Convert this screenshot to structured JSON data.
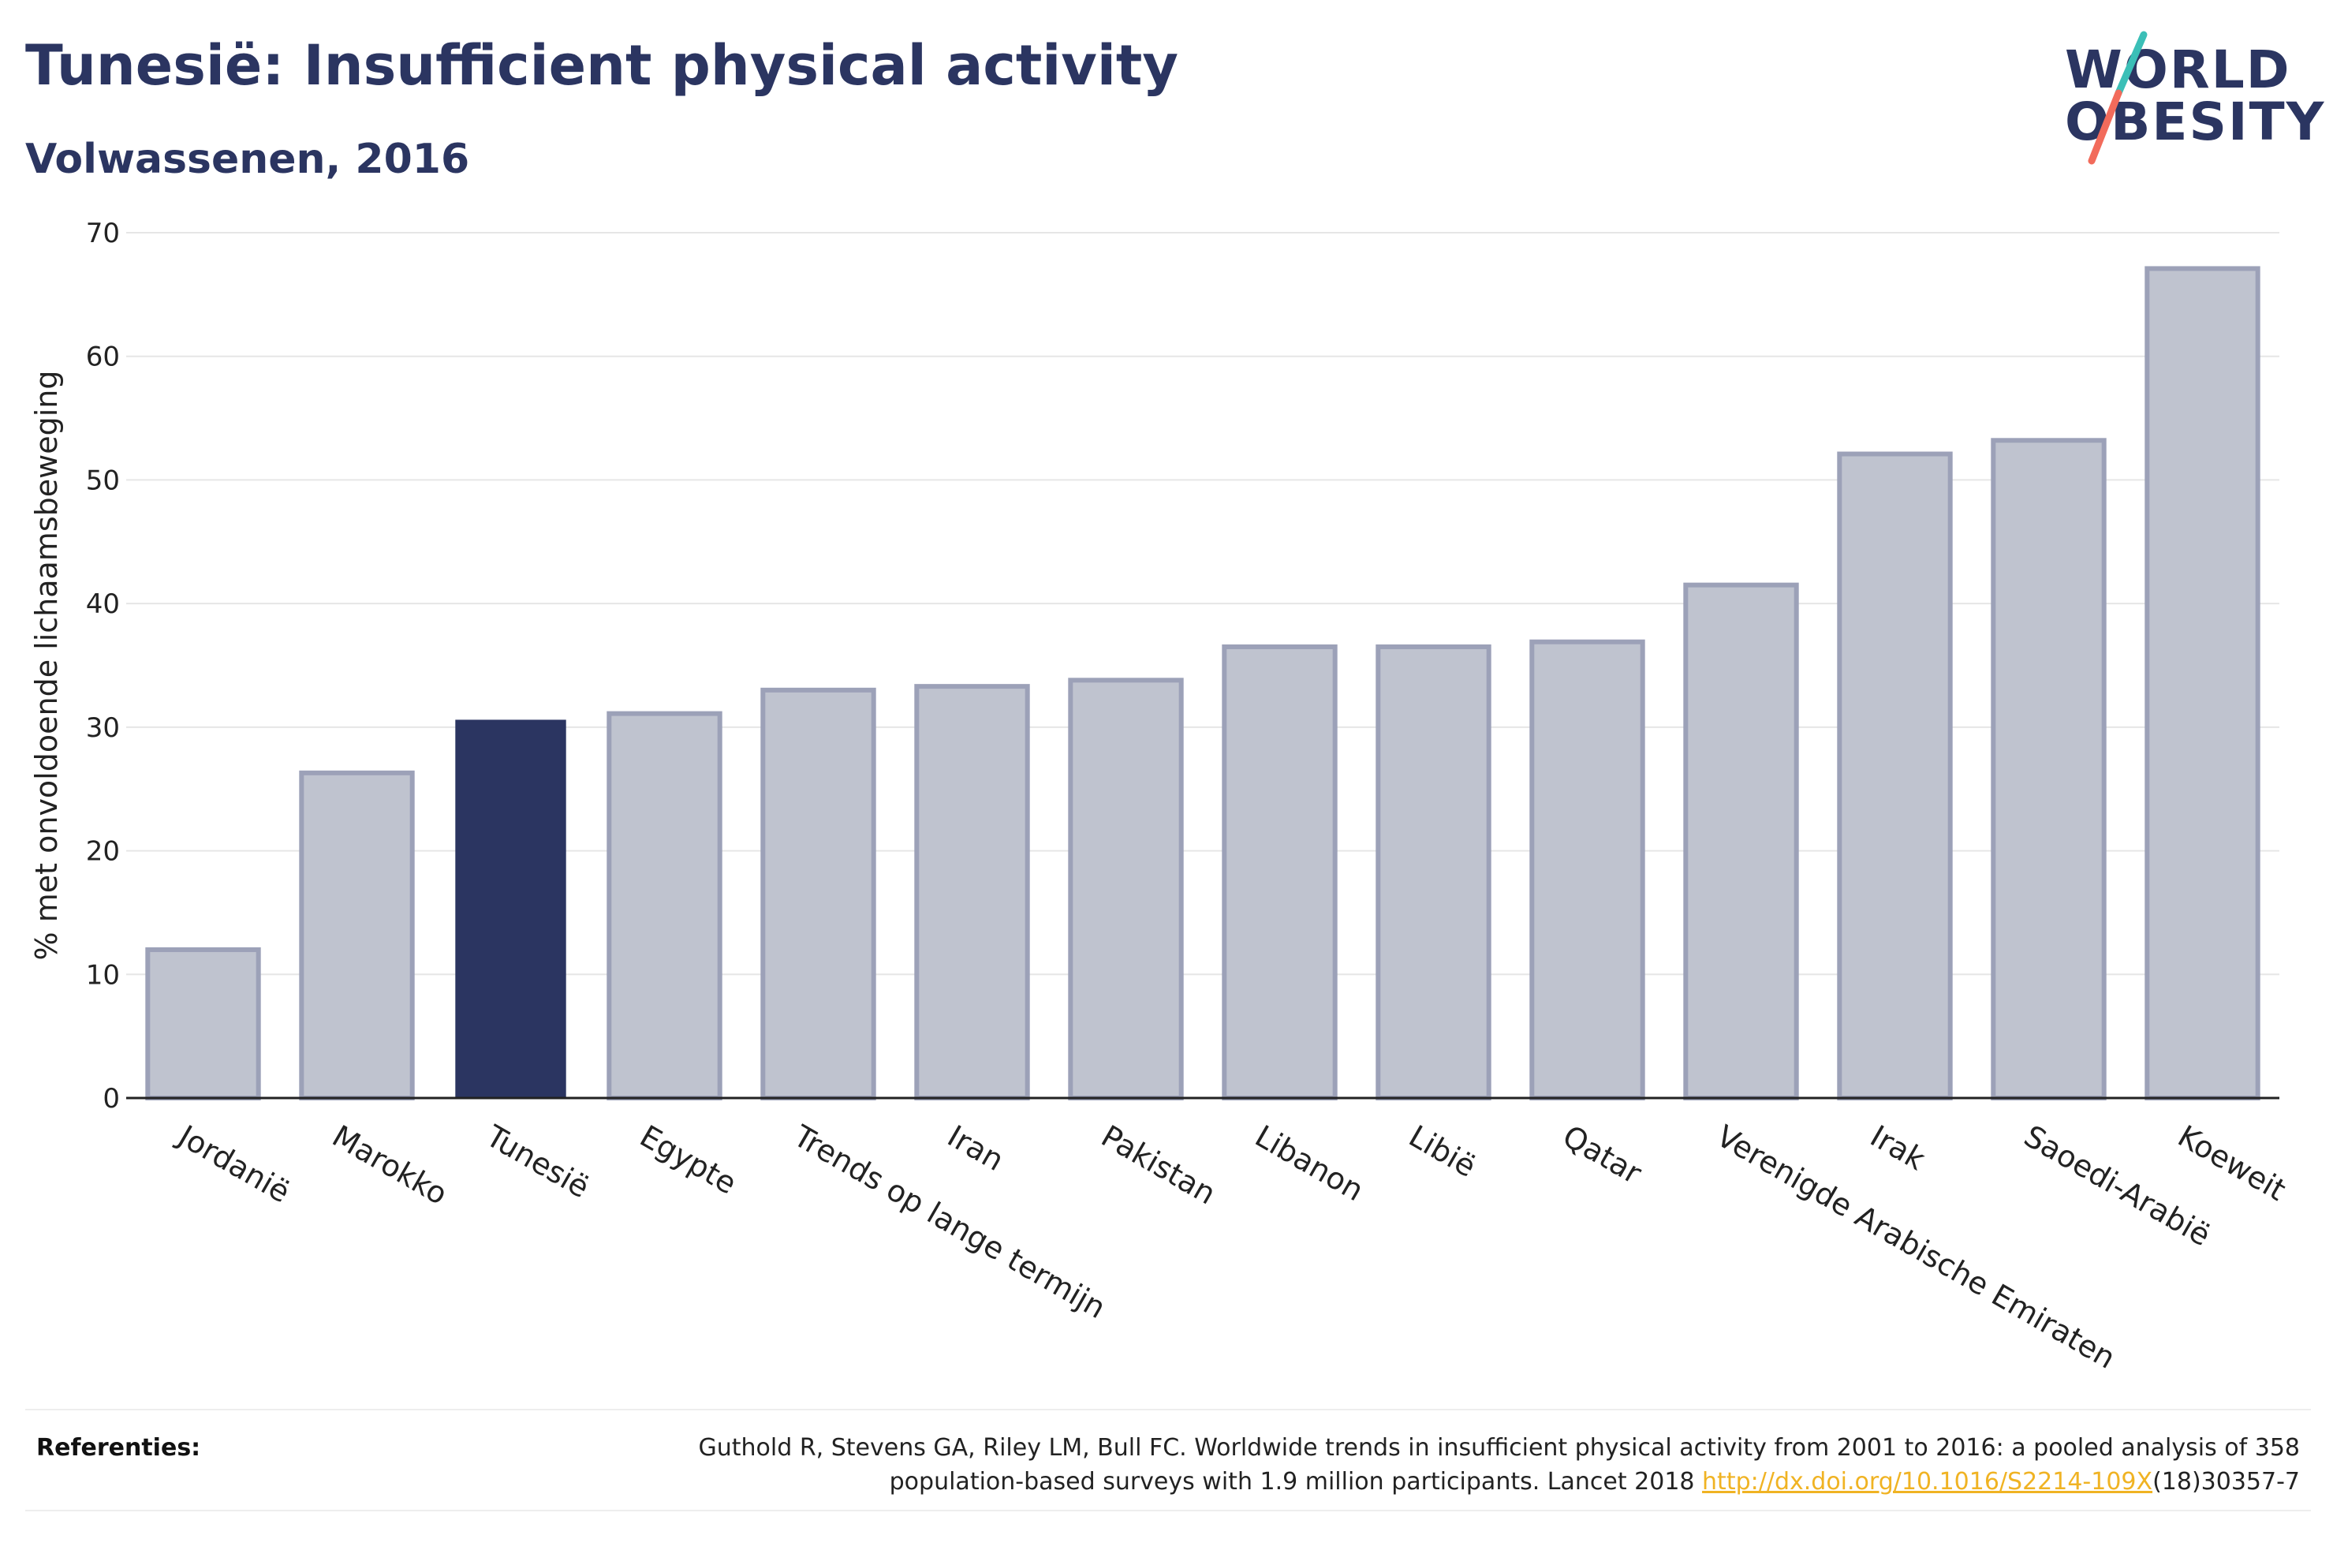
{
  "header": {
    "title": "Tunesië: Insufficient physical activity",
    "subtitle": "Volwassenen, 2016"
  },
  "logo": {
    "line1": "WORLD",
    "line2": "OBESITY",
    "text_color": "#2b3561",
    "slash_colors": [
      "#3bbfb7",
      "#f26b5b"
    ]
  },
  "chart_data": {
    "type": "bar",
    "ylabel": "% met onvoldoende lichaamsbeweging",
    "xlabel": "",
    "ylim": [
      0,
      70
    ],
    "yticks": [
      0,
      10,
      20,
      30,
      40,
      50,
      60,
      70
    ],
    "grid": true,
    "categories": [
      "Jordanië",
      "Marokko",
      "Tunesië",
      "Egypte",
      "Trends op lange termijn",
      "Iran",
      "Pakistan",
      "Libanon",
      "Libië",
      "Qatar",
      "Verenigde Arabische Emiraten",
      "Irak",
      "Saoedi-Arabië",
      "Koeweit"
    ],
    "values": [
      12.0,
      26.3,
      30.6,
      31.1,
      33.0,
      33.3,
      33.8,
      36.5,
      36.5,
      36.9,
      41.5,
      52.1,
      53.2,
      67.1
    ],
    "highlight": "Tunesië",
    "colors": {
      "bar": "#bfc3cf",
      "bar_border": "#9ca1b8",
      "highlight": "#2b3561",
      "axis": "#222222",
      "grid": "#e6e6e6"
    }
  },
  "references": {
    "label": "Referenties:",
    "text_before": "Guthold R, Stevens GA, Riley LM, Bull FC. Worldwide trends in insufficient physical activity from 2001 to 2016: a pooled analysis of 358 population-based surveys with 1.9 million participants. Lancet 2018 ",
    "link": "http://dx.doi.org/10.1016/S2214-109X",
    "text_after": "(18)30357-7"
  }
}
